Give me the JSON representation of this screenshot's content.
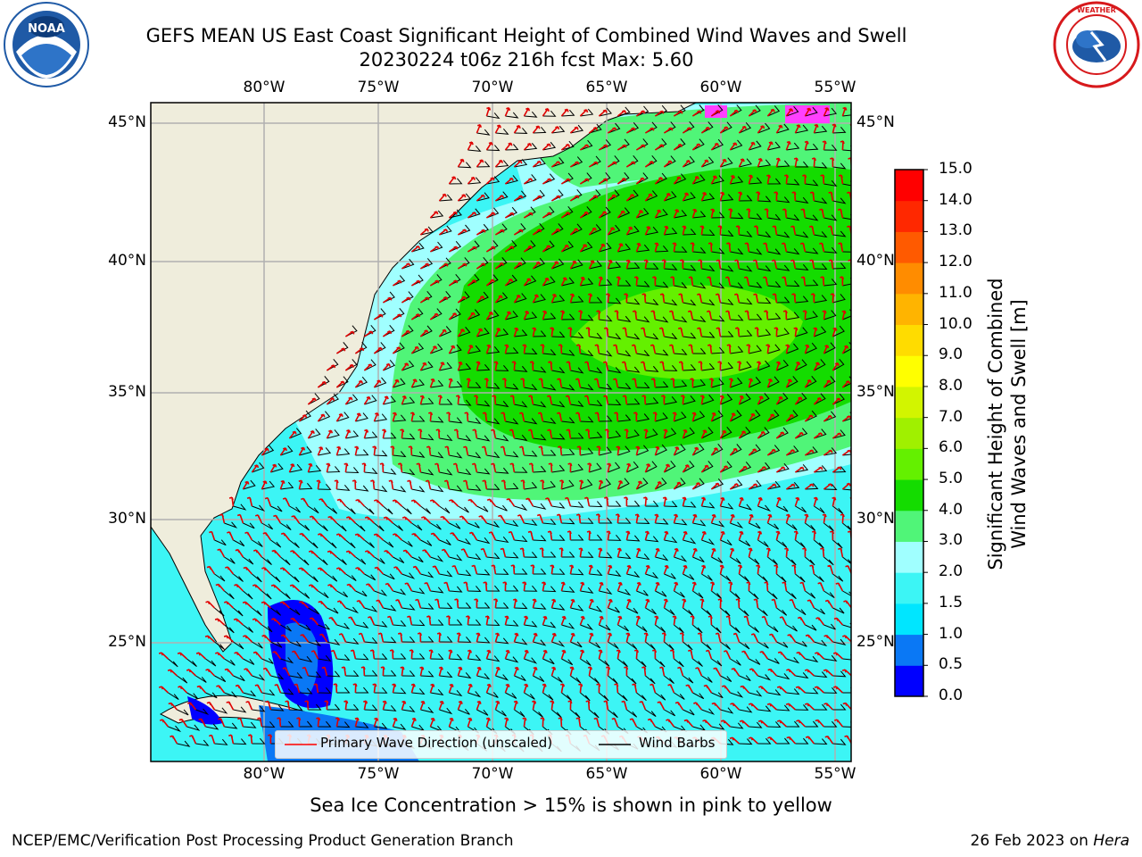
{
  "header": {
    "title_line1": "GEFS MEAN US East Coast Significant Height of Combined Wind Waves and Swell",
    "title_line2": "20230224 t06z 216h fcst   Max: 5.60"
  },
  "logos": {
    "left": {
      "name": "NOAA",
      "ring_text": "NATIONAL OCEANIC AND ATMOSPHERIC ADMINISTRATION · U.S. DEPARTMENT OF COMMERCE",
      "color": "#1f5aa6"
    },
    "right": {
      "name": "National Weather Service",
      "ring_text": "NATIONAL WEATHER SERVICE",
      "color": "#d7191c"
    }
  },
  "map": {
    "lon_labels": [
      "80°W",
      "75°W",
      "70°W",
      "65°W",
      "60°W",
      "55°W"
    ],
    "lat_labels": [
      "45°N",
      "40°N",
      "35°N",
      "30°N",
      "25°N"
    ],
    "land_color": "#efeddc",
    "grid_color": "#b0b0b0",
    "legend": {
      "wave": "Primary Wave Direction (unscaled)",
      "barb": "Wind Barbs"
    }
  },
  "colorbar": {
    "label_line1": "Significant Height of Combined",
    "label_line2": "Wind Waves and Swell [m]",
    "ticks": [
      "0.0",
      "0.5",
      "1.0",
      "1.5",
      "2.0",
      "3.0",
      "4.0",
      "5.0",
      "6.0",
      "7.0",
      "8.0",
      "9.0",
      "10.0",
      "11.0",
      "12.0",
      "13.0",
      "14.0",
      "15.0"
    ],
    "colors": [
      "#0000ff",
      "#0a78f5",
      "#00e6ff",
      "#3cf5f5",
      "#a0ffff",
      "#50f578",
      "#14dc00",
      "#64f000",
      "#a0f000",
      "#d2f500",
      "#ffff00",
      "#ffdc00",
      "#ffb400",
      "#ff8c00",
      "#ff5a00",
      "#ff2800",
      "#ff0000"
    ]
  },
  "footer": {
    "note": "Sea Ice Concentration > 15% is shown in pink to yellow",
    "left": "NCEP/EMC/Verification Post Processing Product Generation Branch",
    "right_date": "26 Feb 2023 on ",
    "right_host": "Hera"
  }
}
